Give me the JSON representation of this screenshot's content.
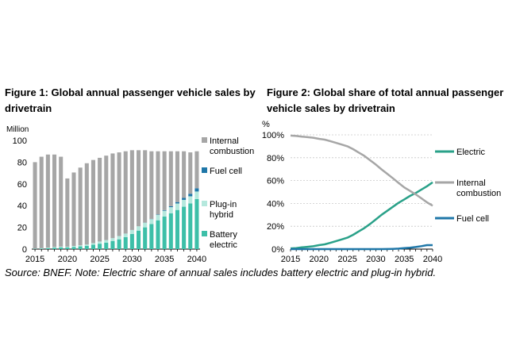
{
  "chart_data": [
    {
      "type": "bar",
      "title": "Figure 1: Global annual passenger vehicle sales by drivetrain",
      "ylabel": "Million",
      "ylim": [
        0,
        100
      ],
      "yticks": [
        "0",
        "20",
        "40",
        "60",
        "80",
        "100"
      ],
      "xticks": [
        "2015",
        "2020",
        "2025",
        "2030",
        "2035",
        "2040"
      ],
      "categories": [
        2015,
        2016,
        2017,
        2018,
        2019,
        2020,
        2021,
        2022,
        2023,
        2024,
        2025,
        2026,
        2027,
        2028,
        2029,
        2030,
        2031,
        2032,
        2033,
        2034,
        2035,
        2036,
        2037,
        2038,
        2039,
        2040
      ],
      "series": [
        {
          "name": "Battery electric",
          "label": "Battery electric",
          "color": "#3dbfa8",
          "values": [
            0.3,
            0.5,
            0.8,
            1.2,
            1.5,
            1.5,
            2,
            2.5,
            3,
            4,
            5,
            6,
            7.5,
            9,
            11,
            14,
            17,
            20,
            23,
            26.5,
            30,
            33,
            36,
            39,
            42,
            46
          ]
        },
        {
          "name": "Plug-in hybrid",
          "label": "Plug-in hybrid",
          "color": "#b5e8dd",
          "values": [
            0.2,
            0.3,
            0.5,
            0.7,
            0.8,
            0.7,
            0.9,
            1,
            1.2,
            1.5,
            2,
            2.3,
            2.6,
            3,
            3.3,
            3.6,
            4,
            4.3,
            4.6,
            5,
            5.3,
            5.6,
            6,
            6.3,
            6.6,
            7
          ]
        },
        {
          "name": "Fuel cell",
          "label": "Fuel cell",
          "color": "#1f77a8",
          "values": [
            0,
            0,
            0,
            0,
            0,
            0,
            0,
            0,
            0,
            0,
            0,
            0,
            0,
            0,
            0,
            0,
            0,
            0.1,
            0.2,
            0.4,
            0.6,
            0.9,
            1.3,
            1.8,
            2.3,
            3
          ]
        },
        {
          "name": "Internal combustion",
          "label": "Internal combustion",
          "color": "#a6a6a6",
          "values": [
            79.5,
            84.2,
            85.7,
            85.1,
            82.7,
            62.8,
            67.6,
            71.5,
            74.8,
            76.5,
            77,
            77.7,
            77.9,
            77,
            75.7,
            73.4,
            70,
            66.6,
            62.2,
            58.1,
            54.1,
            50.5,
            46.7,
            42.9,
            38.1,
            34
          ]
        }
      ]
    },
    {
      "type": "line",
      "title": "Figure 2: Global share of total annual passenger vehicle sales by drivetrain",
      "ylabel": "%",
      "ylim": [
        0,
        100
      ],
      "yticks": [
        "0%",
        "20%",
        "40%",
        "60%",
        "80%",
        "100%"
      ],
      "xticks": [
        "2015",
        "2020",
        "2025",
        "2030",
        "2035",
        "2040"
      ],
      "x": [
        2015,
        2016,
        2017,
        2018,
        2019,
        2020,
        2021,
        2022,
        2023,
        2024,
        2025,
        2026,
        2027,
        2028,
        2029,
        2030,
        2031,
        2032,
        2033,
        2034,
        2035,
        2036,
        2037,
        2038,
        2039,
        2040
      ],
      "series": [
        {
          "name": "Electric",
          "label": "Electric",
          "color": "#2aa189",
          "values": [
            0.6,
            0.9,
            1.5,
            2,
            2.5,
            3.5,
            4.2,
            5.5,
            7,
            8.5,
            10,
            12.5,
            15.5,
            18.5,
            22,
            26,
            30,
            33.5,
            37,
            40.5,
            43.5,
            46.5,
            49,
            52,
            55,
            58.5
          ]
        },
        {
          "name": "Internal combustion",
          "label": "Internal combustion",
          "color": "#a6a6a6",
          "values": [
            99.4,
            99,
            98.5,
            98,
            97.5,
            96.5,
            95.8,
            94.5,
            93,
            91.5,
            90,
            87.5,
            84.5,
            81.5,
            77.8,
            74,
            69.8,
            66,
            62,
            58,
            54,
            51,
            48,
            44.5,
            41,
            38
          ]
        },
        {
          "name": "Fuel cell",
          "label": "Fuel cell",
          "color": "#1f77a8",
          "values": [
            0,
            0,
            0,
            0,
            0,
            0,
            0,
            0,
            0,
            0,
            0,
            0,
            0,
            0,
            0,
            0,
            0,
            0.1,
            0.2,
            0.4,
            0.8,
            1.2,
            1.8,
            2.6,
            3.5,
            3.5
          ]
        }
      ]
    }
  ],
  "source": "Source: BNEF. Note: Electric share of annual sales includes battery electric and plug-in hybrid."
}
